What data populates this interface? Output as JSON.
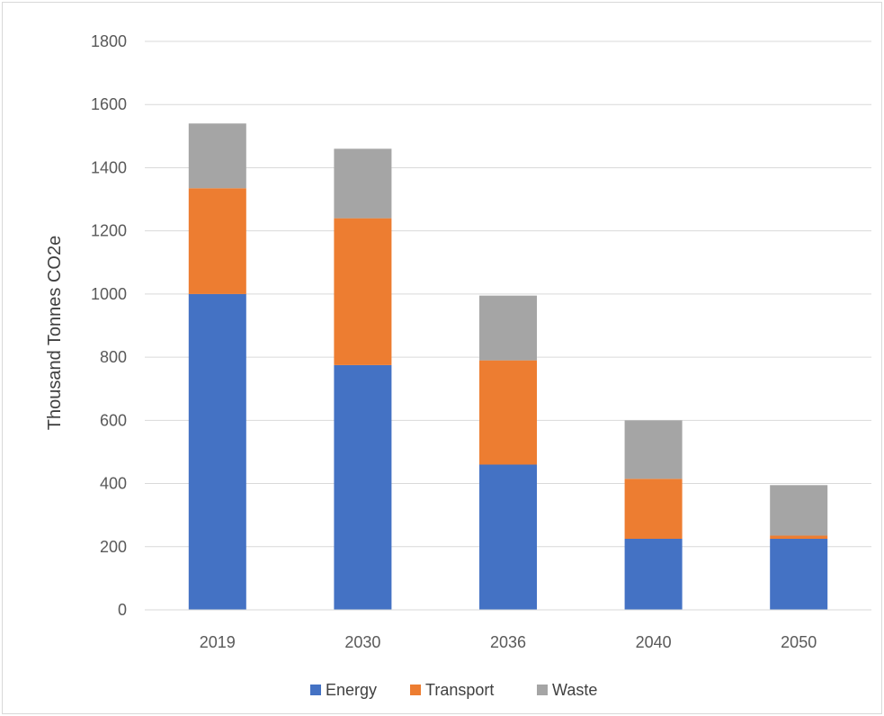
{
  "chart_data": {
    "type": "bar",
    "stacked": true,
    "categories": [
      "2019",
      "2030",
      "2036",
      "2040",
      "2050"
    ],
    "series": [
      {
        "name": "Energy",
        "color": "#4472C4",
        "values": [
          1000,
          775,
          460,
          225,
          225
        ]
      },
      {
        "name": "Transport",
        "color": "#ED7D31",
        "values": [
          335,
          465,
          330,
          190,
          10
        ]
      },
      {
        "name": "Waste",
        "color": "#A5A5A5",
        "values": [
          205,
          220,
          205,
          185,
          160
        ]
      }
    ],
    "title": "",
    "xlabel": "",
    "ylabel": "Thousand Tonnes CO2e",
    "ylim": [
      0,
      1800
    ],
    "yticks": [
      0,
      200,
      400,
      600,
      800,
      1000,
      1200,
      1400,
      1600,
      1800
    ],
    "grid": true,
    "legend_position": "bottom"
  }
}
